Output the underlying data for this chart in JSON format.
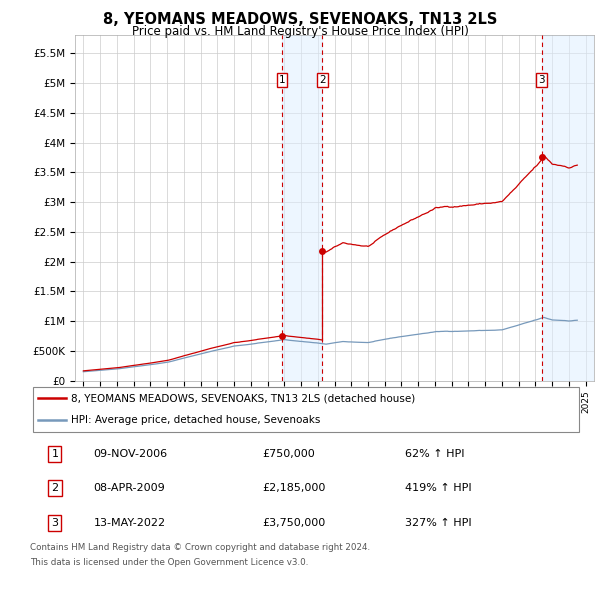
{
  "title": "8, YEOMANS MEADOWS, SEVENOAKS, TN13 2LS",
  "subtitle": "Price paid vs. HM Land Registry's House Price Index (HPI)",
  "ylabel_ticks": [
    "£0",
    "£500K",
    "£1M",
    "£1.5M",
    "£2M",
    "£2.5M",
    "£3M",
    "£3.5M",
    "£4M",
    "£4.5M",
    "£5M",
    "£5.5M"
  ],
  "ytick_values": [
    0,
    500000,
    1000000,
    1500000,
    2000000,
    2500000,
    3000000,
    3500000,
    4000000,
    4500000,
    5000000,
    5500000
  ],
  "ylim": [
    0,
    5800000
  ],
  "xlim_start": 1994.5,
  "xlim_end": 2025.5,
  "sale_dates": [
    2006.86,
    2009.27,
    2022.37
  ],
  "sale_prices": [
    750000,
    2185000,
    3750000
  ],
  "sale_labels": [
    "1",
    "2",
    "3"
  ],
  "legend_line1": "8, YEOMANS MEADOWS, SEVENOAKS, TN13 2LS (detached house)",
  "legend_line2": "HPI: Average price, detached house, Sevenoaks",
  "table_rows": [
    [
      "1",
      "09-NOV-2006",
      "£750,000",
      "62% ↑ HPI"
    ],
    [
      "2",
      "08-APR-2009",
      "£2,185,000",
      "419% ↑ HPI"
    ],
    [
      "3",
      "13-MAY-2022",
      "£3,750,000",
      "327% ↑ HPI"
    ]
  ],
  "footer_line1": "Contains HM Land Registry data © Crown copyright and database right 2024.",
  "footer_line2": "This data is licensed under the Open Government Licence v3.0.",
  "red_color": "#cc0000",
  "blue_color": "#7799bb",
  "shade_color": "#ddeeff",
  "grid_color": "#cccccc"
}
